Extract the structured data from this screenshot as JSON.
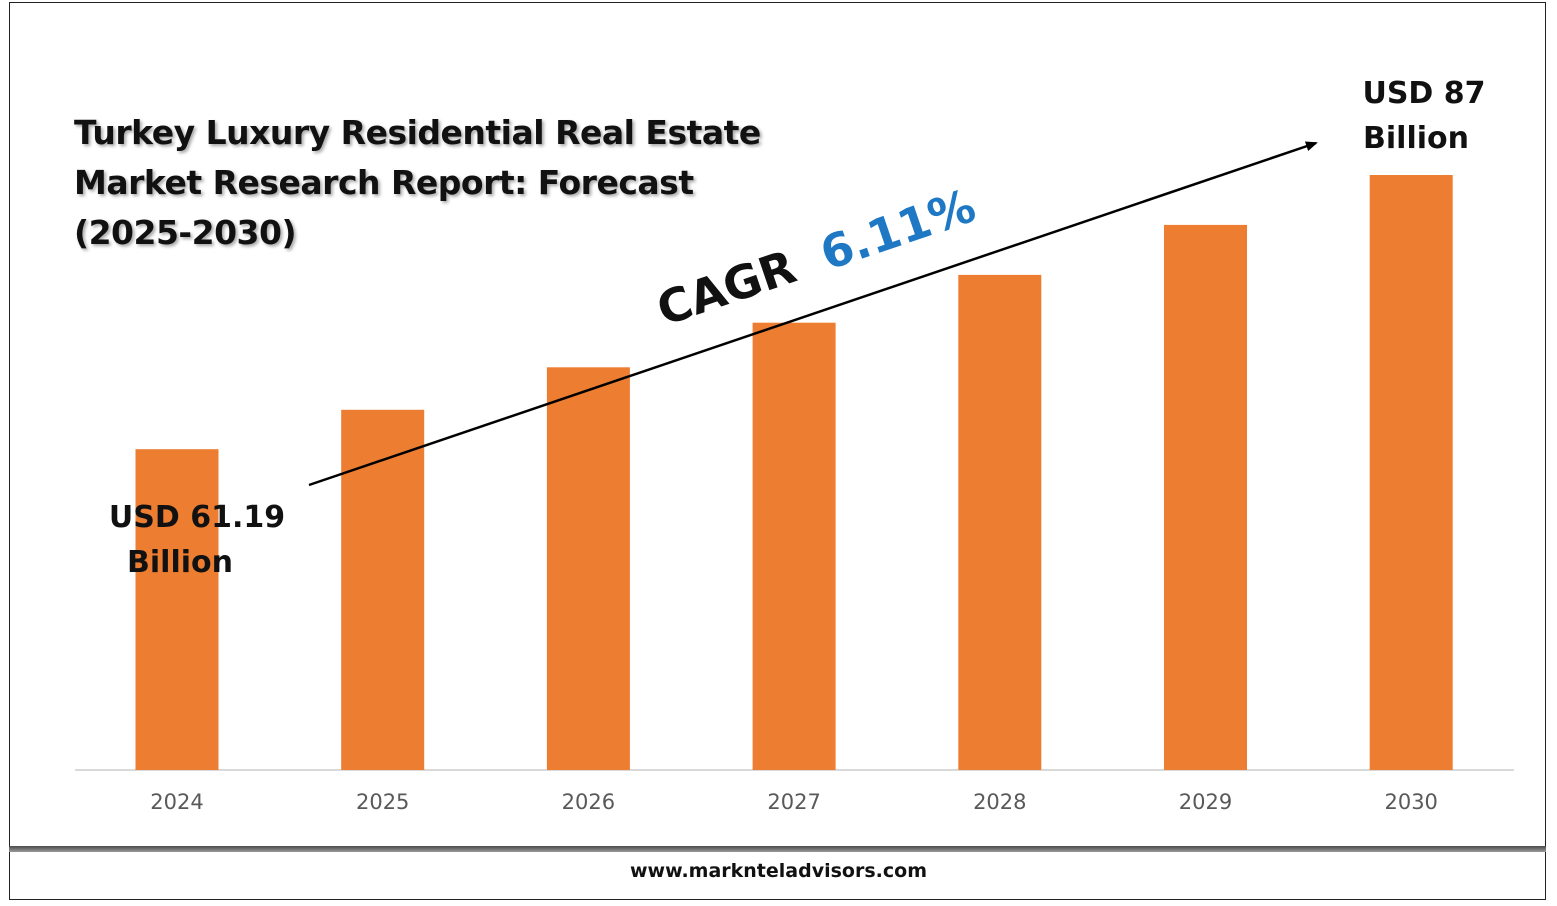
{
  "title": "Turkey Luxury Residential Real Estate Market Research Report: Forecast (2025-2030)",
  "footer": {
    "url": "www.marknteladvisors.com"
  },
  "annotations": {
    "start_label_line1": "USD 61.19",
    "start_label_line2": "Billion",
    "end_label_line1": "USD 87",
    "end_label_line2": "Billion",
    "cagr_prefix": "CAGR",
    "cagr_value": "6.11%"
  },
  "colors": {
    "bar": "#ED7D31",
    "cagr_value": "#1F78C4",
    "axis_text": "#595959",
    "baseline": "#d9d9d9"
  },
  "chart_data": {
    "type": "bar",
    "categories": [
      "2024",
      "2025",
      "2026",
      "2027",
      "2028",
      "2029",
      "2030"
    ],
    "values": [
      61.19,
      64.9,
      68.9,
      73.1,
      77.6,
      82.3,
      87
    ],
    "title": "Turkey Luxury Residential Real Estate Market Research Report: Forecast (2025-2030)",
    "xlabel": "",
    "ylabel": "",
    "unit": "USD Billion",
    "ylim": [
      31,
      95
    ],
    "grid": false,
    "legend": "none"
  }
}
